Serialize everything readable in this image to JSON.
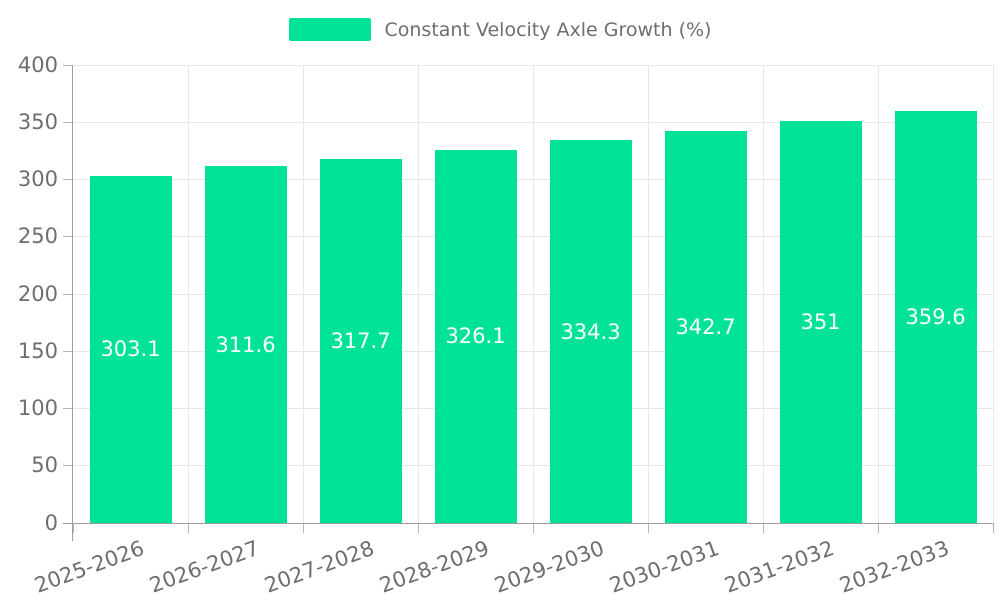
{
  "chart_data": {
    "type": "bar",
    "title": "Constant Velocity Axle Growth (%)",
    "series_name": "Constant Velocity Axle Growth (%)",
    "categories": [
      "2025-2026",
      "2026-2027",
      "2027-2028",
      "2028-2029",
      "2029-2030",
      "2030-2031",
      "2031-2032",
      "2032-2033"
    ],
    "values": [
      303.1,
      311.6,
      317.7,
      326.1,
      334.3,
      342.7,
      351,
      359.6
    ],
    "xlabel": "",
    "ylabel": "",
    "ylim": [
      0,
      400
    ],
    "ytick_step": 50,
    "yticks": [
      0,
      50,
      100,
      150,
      200,
      250,
      300,
      350,
      400
    ],
    "grid": true,
    "legend_position": "top",
    "colors": {
      "bar": "#00E396",
      "value_label": "#ffffff",
      "axis_label": "#6e6e6e",
      "grid": "#e7e7e7",
      "axis_line": "#9e9e9e",
      "tick": "#b6b6b6"
    }
  }
}
